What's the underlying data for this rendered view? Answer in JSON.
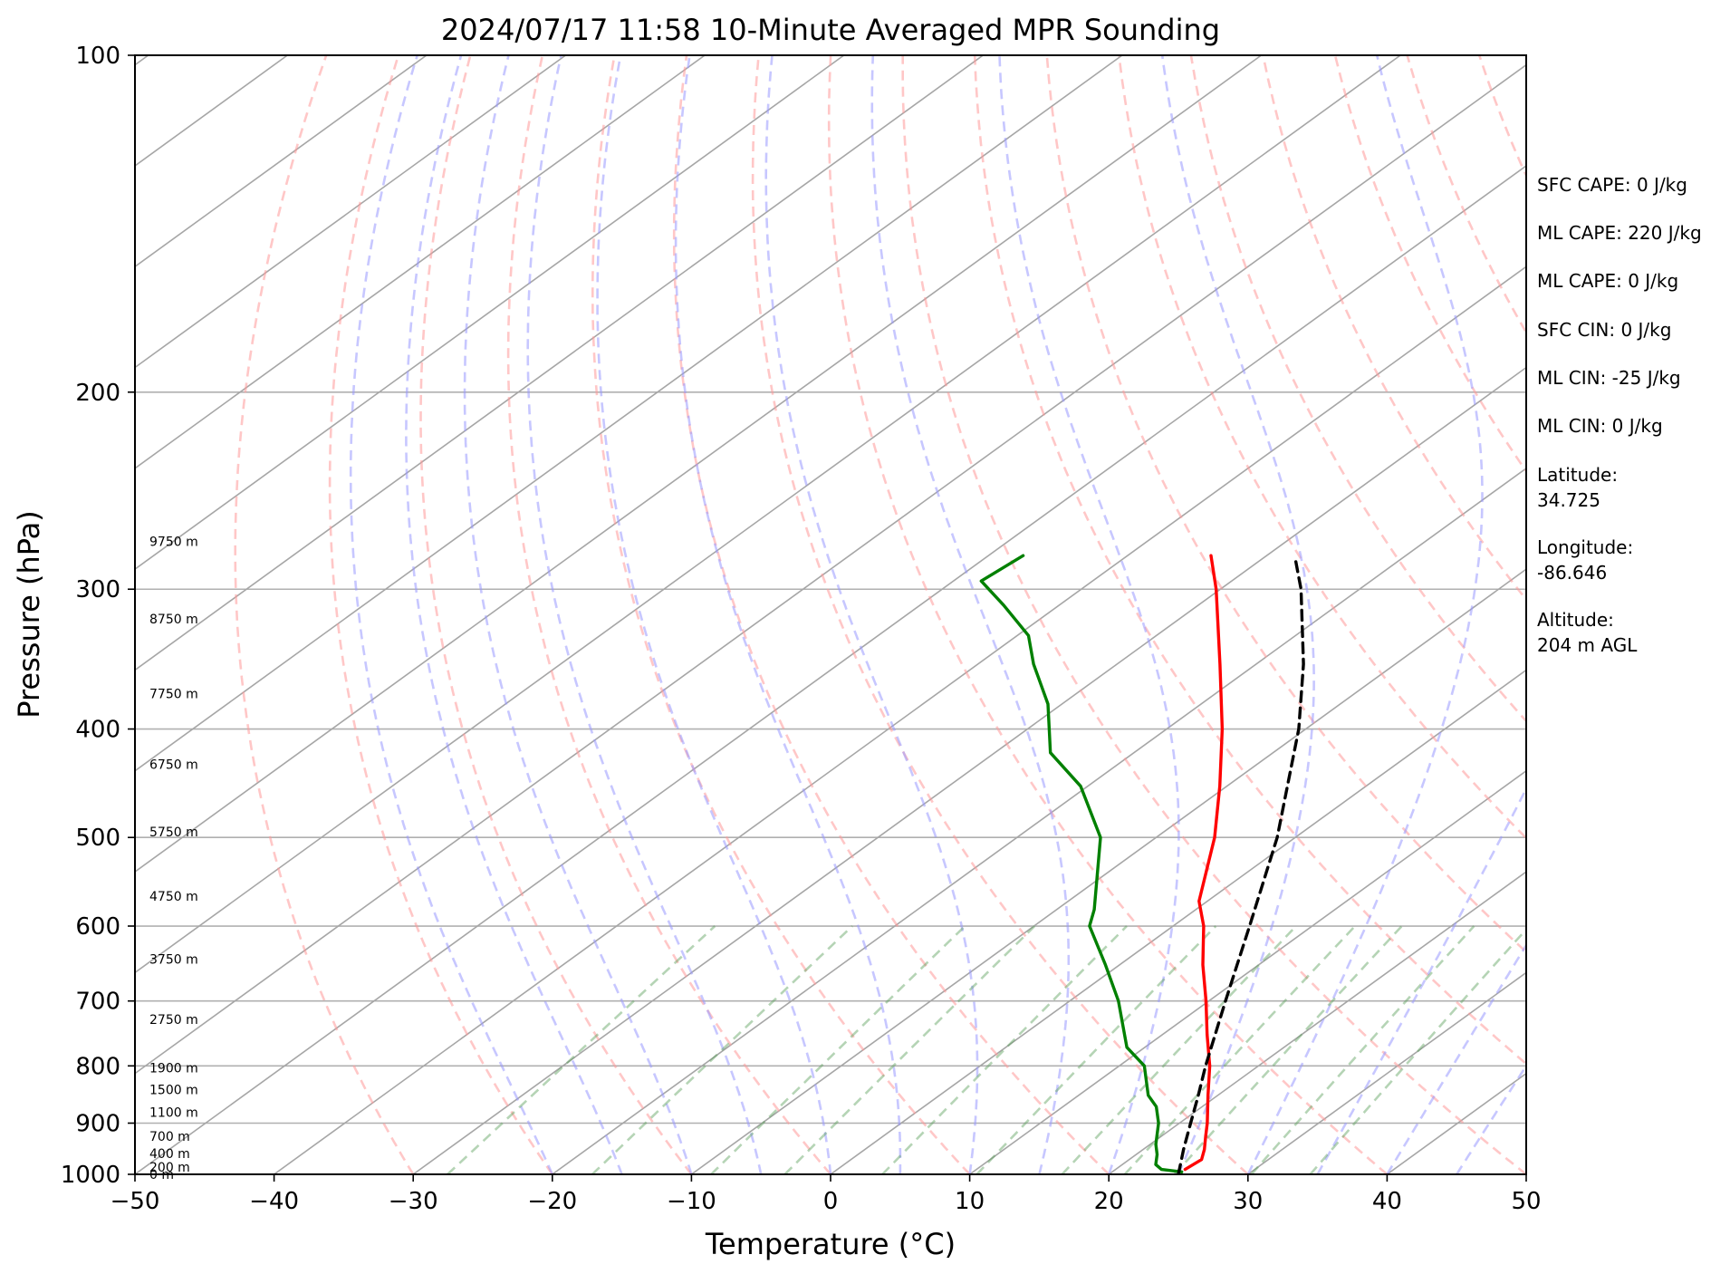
{
  "chart_data": {
    "type": "line",
    "title": "2024/07/17 11:58 10-Minute Averaged MPR Sounding",
    "xlabel": "Temperature (°C)",
    "ylabel": "Pressure (hPa)",
    "xlim": [
      -50,
      50
    ],
    "ylim": [
      1000,
      100
    ],
    "yscale": "log",
    "skew": "skew-T log-P",
    "grid": true,
    "x_ticks": [
      -50,
      -40,
      -30,
      -20,
      -10,
      0,
      10,
      20,
      30,
      40,
      50
    ],
    "x_tick_labels": [
      "−50",
      "−40",
      "−30",
      "−20",
      "−10",
      "0",
      "10",
      "20",
      "30",
      "40",
      "50"
    ],
    "y_ticks": [
      1000,
      900,
      800,
      700,
      600,
      500,
      400,
      300,
      200,
      100
    ],
    "y_tick_labels": [
      "1000",
      "900",
      "800",
      "700",
      "600",
      "500",
      "400",
      "300",
      "200",
      "100"
    ],
    "series": [
      {
        "color": "#ff0000",
        "style": "solid",
        "points": [
          {
            "p": 990,
            "t": 25.0
          },
          {
            "p": 970,
            "t": 25.2
          },
          {
            "p": 950,
            "t": 24.4
          },
          {
            "p": 925,
            "t": 23.2
          },
          {
            "p": 900,
            "t": 22.0
          },
          {
            "p": 850,
            "t": 19.3
          },
          {
            "p": 800,
            "t": 16.5
          },
          {
            "p": 750,
            "t": 13.2
          },
          {
            "p": 700,
            "t": 9.8
          },
          {
            "p": 650,
            "t": 6.0
          },
          {
            "p": 600,
            "t": 2.2
          },
          {
            "p": 570,
            "t": -0.6
          },
          {
            "p": 500,
            "t": -5.8
          },
          {
            "p": 450,
            "t": -10.5
          },
          {
            "p": 400,
            "t": -16.0
          },
          {
            "p": 350,
            "t": -22.6
          },
          {
            "p": 300,
            "t": -30.3
          },
          {
            "p": 280,
            "t": -34.0
          }
        ]
      },
      {
        "color": "#008000",
        "style": "solid",
        "points": [
          {
            "p": 995,
            "t": 25.0
          },
          {
            "p": 990,
            "t": 23.3
          },
          {
            "p": 980,
            "t": 22.4
          },
          {
            "p": 960,
            "t": 21.5
          },
          {
            "p": 940,
            "t": 20.4
          },
          {
            "p": 900,
            "t": 18.5
          },
          {
            "p": 870,
            "t": 16.7
          },
          {
            "p": 850,
            "t": 15.0
          },
          {
            "p": 800,
            "t": 11.8
          },
          {
            "p": 770,
            "t": 8.7
          },
          {
            "p": 700,
            "t": 3.5
          },
          {
            "p": 650,
            "t": -1.0
          },
          {
            "p": 600,
            "t": -6.0
          },
          {
            "p": 580,
            "t": -7.3
          },
          {
            "p": 500,
            "t": -14.0
          },
          {
            "p": 450,
            "t": -20.5
          },
          {
            "p": 420,
            "t": -26.0
          },
          {
            "p": 380,
            "t": -31.0
          },
          {
            "p": 350,
            "t": -36.0
          },
          {
            "p": 330,
            "t": -39.2
          },
          {
            "p": 310,
            "t": -44.0
          },
          {
            "p": 295,
            "t": -48.0
          },
          {
            "p": 280,
            "t": -47.5
          }
        ]
      },
      {
        "color": "#000000",
        "style": "dashed",
        "points": [
          {
            "p": 1000,
            "t": 25.0
          },
          {
            "p": 950,
            "t": 22.9
          },
          {
            "p": 900,
            "t": 20.8
          },
          {
            "p": 850,
            "t": 18.6
          },
          {
            "p": 800,
            "t": 16.2
          },
          {
            "p": 700,
            "t": 11.2
          },
          {
            "p": 600,
            "t": 5.5
          },
          {
            "p": 500,
            "t": -1.3
          },
          {
            "p": 400,
            "t": -10.5
          },
          {
            "p": 350,
            "t": -16.6
          },
          {
            "p": 300,
            "t": -24.2
          },
          {
            "p": 283,
            "t": -27.4
          }
        ]
      }
    ],
    "height_labels": [
      {
        "p": 1000,
        "text": "0 m"
      },
      {
        "p": 985,
        "text": "200 m"
      },
      {
        "p": 958,
        "text": "400 m"
      },
      {
        "p": 925,
        "text": "700 m"
      },
      {
        "p": 880,
        "text": "1100 m"
      },
      {
        "p": 840,
        "text": "1500 m"
      },
      {
        "p": 803,
        "text": "1900 m"
      },
      {
        "p": 727,
        "text": "2750 m"
      },
      {
        "p": 642,
        "text": "3750 m"
      },
      {
        "p": 564,
        "text": "4750 m"
      },
      {
        "p": 494,
        "text": "5750 m"
      },
      {
        "p": 430,
        "text": "6750 m"
      },
      {
        "p": 372,
        "text": "7750 m"
      },
      {
        "p": 319,
        "text": "8750 m"
      },
      {
        "p": 272,
        "text": "9750 m"
      }
    ],
    "annotations": [
      "SFC CAPE: 0 J/kg",
      "ML CAPE: 220 J/kg",
      "ML CAPE: 0 J/kg",
      "SFC CIN: 0 J/kg",
      "ML CIN: -25 J/kg",
      "ML CIN: 0 J/kg",
      "Latitude:\n34.725",
      "Longitude:\n-86.646",
      "Altitude:\n204 m AGL"
    ]
  }
}
